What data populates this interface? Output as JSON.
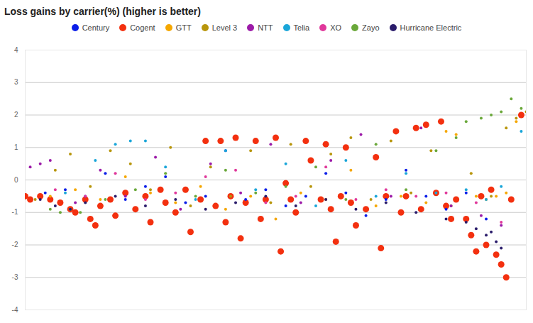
{
  "chart_data": {
    "type": "scatter",
    "title": "Loss gains by carrier(%) (higher is better)",
    "xlim": [
      0,
      100
    ],
    "ylim": [
      -4,
      4
    ],
    "yticks": [
      -4,
      -3,
      -2,
      -1,
      0,
      1,
      2,
      3,
      4
    ],
    "grid": true,
    "legend": "top",
    "tick_labels": "y",
    "series": [
      {
        "name": "Century",
        "color": "#0b1ee8",
        "marker": "point",
        "x": [
          4,
          8,
          12,
          16,
          20,
          24,
          28,
          32,
          36,
          40,
          44,
          48,
          52,
          56,
          60,
          64,
          68,
          72,
          76,
          80,
          84,
          88,
          92
        ],
        "values": [
          -0.4,
          -0.3,
          -0.5,
          0.2,
          -0.6,
          -0.2,
          0.1,
          -0.7,
          -0.5,
          0.9,
          -0.6,
          -0.3,
          -0.8,
          -0.5,
          0.2,
          -0.4,
          -1.1,
          -0.6,
          0.3,
          -0.5,
          -0.9,
          -0.4,
          -1.2
        ]
      },
      {
        "name": "Cogent",
        "color": "#f3300f",
        "marker": "circle",
        "x": [
          0,
          1,
          3,
          5,
          7,
          9,
          10,
          12,
          13,
          14,
          15,
          17,
          18,
          20,
          22,
          24,
          25,
          27,
          28,
          30,
          32,
          33,
          35,
          36,
          38,
          39,
          40,
          41,
          42,
          43,
          44,
          46,
          47,
          48,
          50,
          51,
          52,
          53,
          54,
          56,
          57,
          59,
          60,
          61,
          62,
          63,
          64,
          65,
          66,
          68,
          70,
          71,
          72,
          74,
          75,
          76,
          78,
          79,
          80,
          82,
          83,
          84,
          85,
          86,
          88,
          89,
          90,
          91,
          92,
          93,
          94,
          95,
          96,
          97,
          99
        ],
        "values": [
          -0.5,
          -0.6,
          -0.5,
          -0.6,
          -0.7,
          -0.9,
          -1.0,
          -0.6,
          -1.2,
          -1.4,
          -0.8,
          -0.6,
          -1.1,
          -0.4,
          -0.9,
          -0.5,
          -1.3,
          -0.3,
          -0.7,
          -1.0,
          -0.3,
          -1.6,
          -0.6,
          1.2,
          -0.8,
          1.2,
          -1.3,
          -0.5,
          1.3,
          -1.8,
          -0.7,
          1.2,
          -1.2,
          -0.6,
          1.3,
          -2.2,
          -0.1,
          -0.6,
          -1.0,
          1.2,
          0.6,
          -0.6,
          1.1,
          -0.9,
          -1.9,
          -0.5,
          1.0,
          -0.7,
          -1.4,
          -0.9,
          0.7,
          -2.1,
          -0.5,
          1.5,
          -1.0,
          -0.5,
          1.6,
          -0.9,
          1.7,
          -0.4,
          1.8,
          -0.8,
          -1.2,
          -0.6,
          -1.2,
          -1.7,
          -2.2,
          -0.5,
          -2.0,
          -0.3,
          -2.3,
          -2.6,
          -3.0,
          -0.6,
          2.0
        ]
      },
      {
        "name": "GTT",
        "color": "#f5a700",
        "marker": "point",
        "x": [
          5,
          10,
          15,
          20,
          25,
          30,
          35,
          40,
          45,
          50,
          55,
          60,
          65,
          70,
          75,
          80,
          84,
          86,
          90,
          92,
          94,
          96,
          98
        ],
        "values": [
          -0.5,
          -0.3,
          -0.6,
          0.1,
          -0.4,
          -0.7,
          -0.2,
          -0.9,
          -0.5,
          -1.2,
          -0.4,
          -0.6,
          0.3,
          -0.8,
          -0.5,
          -0.7,
          1.5,
          1.4,
          -0.5,
          -0.6,
          -0.5,
          -0.4,
          1.8
        ]
      },
      {
        "name": "Level 3",
        "color": "#b8960c",
        "marker": "point",
        "x": [
          2,
          6,
          9,
          13,
          17,
          21,
          25,
          29,
          33,
          37,
          41,
          45,
          49,
          53,
          57,
          61,
          65,
          69,
          73,
          77,
          81,
          85,
          89,
          93,
          96,
          98,
          100
        ],
        "values": [
          -0.6,
          0.3,
          0.8,
          -0.2,
          0.9,
          0.5,
          -0.3,
          1.0,
          -0.8,
          0.4,
          -0.5,
          0.9,
          -0.7,
          1.1,
          -0.2,
          0.8,
          1.3,
          -0.6,
          1.2,
          -0.4,
          0.9,
          -0.8,
          0.2,
          -0.5,
          1.6,
          1.9,
          2.1
        ]
      },
      {
        "name": "NTT",
        "color": "#9c1aa8",
        "marker": "point",
        "x": [
          1,
          3,
          5,
          10,
          15,
          20,
          26,
          31,
          37,
          43,
          49,
          55,
          61,
          67,
          73,
          79,
          85,
          91,
          95
        ],
        "values": [
          0.4,
          0.5,
          0.6,
          -0.7,
          0.3,
          -0.5,
          0.7,
          -0.9,
          0.5,
          -0.4,
          1.1,
          -0.7,
          0.6,
          1.4,
          -0.5,
          1.6,
          -0.8,
          -1.1,
          -1.4
        ]
      },
      {
        "name": "Telia",
        "color": "#1aa6d9",
        "marker": "point",
        "x": [
          8,
          14,
          18,
          21,
          24,
          28,
          34,
          40,
          46,
          52,
          58,
          64,
          70,
          76,
          82,
          88,
          92,
          95,
          99
        ],
        "values": [
          -0.4,
          0.6,
          1.1,
          1.2,
          1.2,
          0.4,
          -0.6,
          0.9,
          -0.3,
          0.5,
          -0.8,
          0.6,
          -0.5,
          0.2,
          -0.4,
          -0.3,
          -0.6,
          -0.2,
          1.5
        ]
      },
      {
        "name": "XO",
        "color": "#e0389b",
        "marker": "point",
        "x": [
          6,
          12,
          18,
          24,
          30,
          36,
          42,
          48,
          54,
          60,
          66,
          72,
          78,
          84,
          90,
          95
        ],
        "values": [
          -0.3,
          -0.5,
          0.2,
          -0.6,
          -0.4,
          0.1,
          0.3,
          -0.7,
          -0.5,
          0.4,
          -0.6,
          -0.3,
          -0.5,
          -0.4,
          -0.7,
          -1.3
        ]
      },
      {
        "name": "Zayo",
        "color": "#6aa83a",
        "marker": "point",
        "x": [
          5,
          7,
          9,
          11,
          16,
          22,
          28,
          34,
          40,
          46,
          52,
          58,
          64,
          70,
          76,
          82,
          86,
          88,
          91,
          93,
          95,
          97,
          99
        ],
        "values": [
          -0.9,
          -1.0,
          -0.9,
          -1.0,
          -0.6,
          -0.3,
          0.2,
          -0.5,
          0.3,
          -0.4,
          -0.2,
          0.4,
          -0.6,
          1.1,
          -0.3,
          0.9,
          1.3,
          1.8,
          1.9,
          2.0,
          2.1,
          2.5,
          2.2
        ]
      },
      {
        "name": "Hurricane Electric",
        "color": "#2a1c6b",
        "marker": "point",
        "x": [
          3,
          6,
          9,
          12,
          18,
          24,
          30,
          36,
          42,
          48,
          54,
          60,
          66,
          72,
          78,
          84,
          88,
          90,
          92,
          93,
          94,
          95
        ],
        "values": [
          -0.6,
          -0.8,
          -0.9,
          -0.7,
          -0.5,
          -0.8,
          -0.6,
          -0.9,
          -0.7,
          -0.5,
          -0.8,
          -0.6,
          -0.9,
          -0.7,
          -1.0,
          -1.2,
          -1.3,
          -1.5,
          -1.7,
          -1.6,
          -1.9,
          -2.1
        ]
      }
    ]
  }
}
